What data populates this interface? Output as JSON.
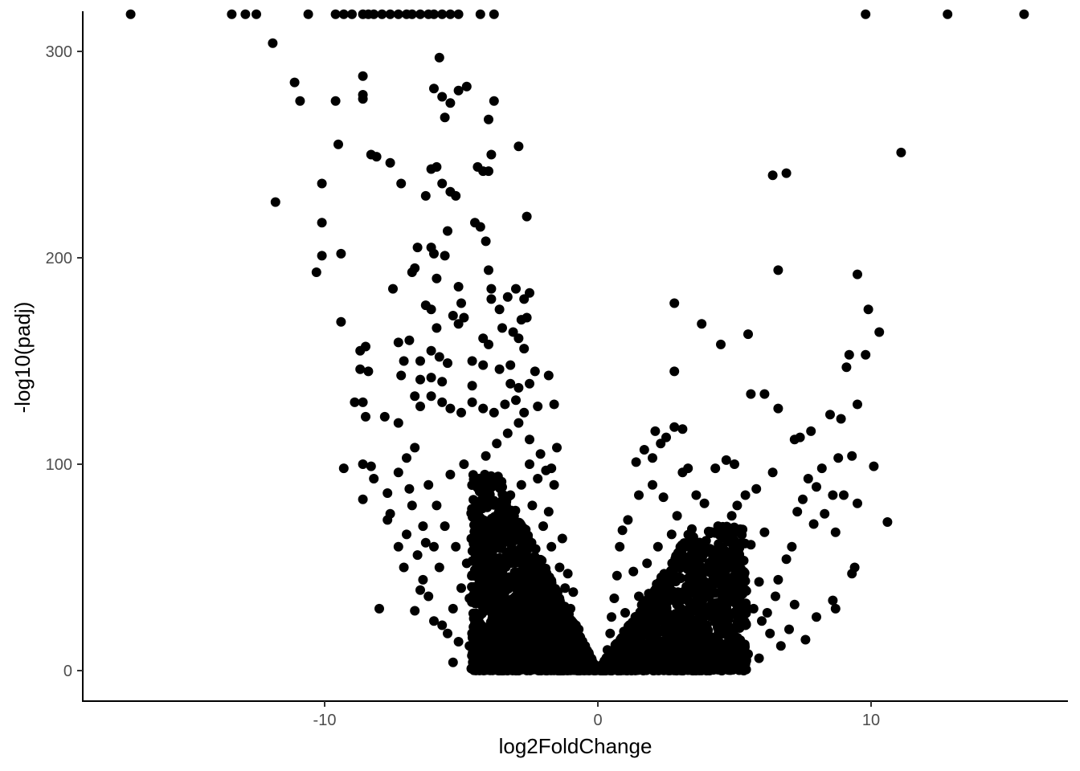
{
  "chart_data": {
    "type": "scatter",
    "title": "",
    "xlabel": "log2FoldChange",
    "ylabel": "-log10(padj)",
    "xlim": [
      -18.5,
      17.5
    ],
    "ylim": [
      -15,
      318
    ],
    "x_ticks": [
      -10,
      0,
      10
    ],
    "x_tick_labels": [
      "-10",
      "0",
      "10"
    ],
    "y_ticks": [
      0,
      100,
      200,
      300
    ],
    "y_tick_labels": [
      "0",
      "100",
      "200",
      "300"
    ],
    "grid": false,
    "legend": "none",
    "point_color": "#000000",
    "points": [
      [
        -17.1,
        318
      ],
      [
        -13.4,
        318
      ],
      [
        -12.9,
        318
      ],
      [
        -12.5,
        318
      ],
      [
        -10.6,
        318
      ],
      [
        -9.6,
        318
      ],
      [
        -9.3,
        318
      ],
      [
        -9.0,
        318
      ],
      [
        -8.6,
        318
      ],
      [
        -8.4,
        318
      ],
      [
        -8.2,
        318
      ],
      [
        -7.9,
        318
      ],
      [
        -7.6,
        318
      ],
      [
        -7.3,
        318
      ],
      [
        -7.0,
        318
      ],
      [
        -6.8,
        318
      ],
      [
        -6.5,
        318
      ],
      [
        -6.2,
        318
      ],
      [
        -6.0,
        318
      ],
      [
        -5.7,
        318
      ],
      [
        -5.4,
        318
      ],
      [
        -5.1,
        318
      ],
      [
        -4.3,
        318
      ],
      [
        -3.8,
        318
      ],
      [
        9.8,
        318
      ],
      [
        12.8,
        318
      ],
      [
        15.6,
        318
      ],
      [
        -11.9,
        304
      ],
      [
        -11.1,
        285
      ],
      [
        -10.9,
        276
      ],
      [
        -9.6,
        276
      ],
      [
        -8.6,
        288
      ],
      [
        -8.6,
        279
      ],
      [
        -8.6,
        277
      ],
      [
        -9.5,
        255
      ],
      [
        -5.8,
        297
      ],
      [
        -6.0,
        282
      ],
      [
        -5.7,
        278
      ],
      [
        -5.4,
        275
      ],
      [
        -5.1,
        281
      ],
      [
        -4.8,
        283
      ],
      [
        -3.8,
        276
      ],
      [
        -4.0,
        267
      ],
      [
        -5.6,
        268
      ],
      [
        -3.9,
        250
      ],
      [
        -2.9,
        254
      ],
      [
        -8.3,
        250
      ],
      [
        -8.1,
        249
      ],
      [
        -7.6,
        246
      ],
      [
        -7.2,
        236
      ],
      [
        -6.1,
        243
      ],
      [
        -5.9,
        244
      ],
      [
        -5.7,
        236
      ],
      [
        -5.4,
        232
      ],
      [
        -5.2,
        230
      ],
      [
        -6.3,
        230
      ],
      [
        -4.4,
        244
      ],
      [
        -4.2,
        242
      ],
      [
        -4.0,
        242
      ],
      [
        -11.8,
        227
      ],
      [
        -10.1,
        236
      ],
      [
        -10.1,
        217
      ],
      [
        -10.1,
        201
      ],
      [
        -10.3,
        193
      ],
      [
        -9.4,
        202
      ],
      [
        -9.4,
        169
      ],
      [
        -2.6,
        220
      ],
      [
        -4.5,
        217
      ],
      [
        -4.3,
        215
      ],
      [
        -5.5,
        213
      ],
      [
        -4.1,
        208
      ],
      [
        -6.6,
        205
      ],
      [
        -6.1,
        205
      ],
      [
        -6.0,
        202
      ],
      [
        -5.6,
        201
      ],
      [
        -6.7,
        195
      ],
      [
        -6.8,
        193
      ],
      [
        -5.9,
        190
      ],
      [
        -4.0,
        194
      ],
      [
        -5.1,
        186
      ],
      [
        -3.9,
        185
      ],
      [
        -3.9,
        180
      ],
      [
        -3.3,
        181
      ],
      [
        -2.5,
        183
      ],
      [
        -2.7,
        180
      ],
      [
        -3.0,
        185
      ],
      [
        -7.5,
        185
      ],
      [
        -6.3,
        177
      ],
      [
        -6.1,
        175
      ],
      [
        -5.0,
        178
      ],
      [
        -5.3,
        172
      ],
      [
        -4.9,
        171
      ],
      [
        -3.6,
        175
      ],
      [
        -2.6,
        171
      ],
      [
        -2.8,
        170
      ],
      [
        -3.5,
        166
      ],
      [
        -3.1,
        164
      ],
      [
        -2.9,
        161
      ],
      [
        -4.2,
        161
      ],
      [
        -4.0,
        158
      ],
      [
        -5.9,
        166
      ],
      [
        -6.9,
        160
      ],
      [
        -7.3,
        159
      ],
      [
        -5.1,
        168
      ],
      [
        -8.5,
        157
      ],
      [
        -8.7,
        155
      ],
      [
        -8.7,
        146
      ],
      [
        -8.4,
        145
      ],
      [
        -7.1,
        150
      ],
      [
        -6.5,
        150
      ],
      [
        -6.1,
        155
      ],
      [
        -5.8,
        152
      ],
      [
        -5.5,
        149
      ],
      [
        -4.6,
        150
      ],
      [
        -4.2,
        148
      ],
      [
        -3.6,
        146
      ],
      [
        -3.2,
        148
      ],
      [
        -2.7,
        156
      ],
      [
        -2.3,
        145
      ],
      [
        -7.2,
        143
      ],
      [
        -6.5,
        141
      ],
      [
        -6.1,
        142
      ],
      [
        -5.7,
        140
      ],
      [
        -4.6,
        138
      ],
      [
        -3.2,
        139
      ],
      [
        -2.9,
        137
      ],
      [
        -2.5,
        139
      ],
      [
        -1.8,
        143
      ],
      [
        -8.9,
        130
      ],
      [
        -8.6,
        130
      ],
      [
        -8.5,
        123
      ],
      [
        -7.8,
        123
      ],
      [
        -7.3,
        120
      ],
      [
        -6.7,
        133
      ],
      [
        -6.5,
        128
      ],
      [
        -6.1,
        133
      ],
      [
        -5.7,
        130
      ],
      [
        -5.4,
        127
      ],
      [
        -5.0,
        125
      ],
      [
        -4.6,
        130
      ],
      [
        -4.2,
        127
      ],
      [
        -3.8,
        125
      ],
      [
        -3.4,
        129
      ],
      [
        -3.0,
        131
      ],
      [
        -2.7,
        125
      ],
      [
        -2.2,
        128
      ],
      [
        -1.6,
        129
      ],
      [
        -1.5,
        108
      ],
      [
        -9.3,
        98
      ],
      [
        -8.6,
        100
      ],
      [
        -8.3,
        99
      ],
      [
        -8.2,
        93
      ],
      [
        -7.7,
        86
      ],
      [
        -7.3,
        96
      ],
      [
        -7.0,
        103
      ],
      [
        -6.7,
        108
      ],
      [
        -8.6,
        83
      ],
      [
        -7.6,
        76
      ],
      [
        -7.7,
        73
      ],
      [
        -7.3,
        60
      ],
      [
        -7.1,
        50
      ],
      [
        -8.0,
        30
      ],
      [
        -6.7,
        29
      ],
      [
        -6.4,
        44
      ],
      [
        -6.5,
        39
      ],
      [
        -6.0,
        24
      ],
      [
        -5.3,
        4
      ],
      [
        -4.5,
        4
      ],
      [
        -3.5,
        11
      ],
      [
        -2.2,
        36
      ],
      [
        -1.8,
        77
      ],
      [
        -2.5,
        100
      ],
      [
        -2.2,
        93
      ],
      [
        -1.9,
        97
      ],
      [
        -1.6,
        90
      ],
      [
        -1.3,
        64
      ],
      [
        -1.1,
        47
      ],
      [
        -0.9,
        38
      ],
      [
        -0.7,
        20
      ],
      [
        -0.5,
        8
      ],
      [
        -0.3,
        2
      ],
      [
        -0.15,
        0.5
      ],
      [
        2.8,
        178
      ],
      [
        3.8,
        168
      ],
      [
        4.5,
        158
      ],
      [
        5.5,
        163
      ],
      [
        2.8,
        145
      ],
      [
        5.6,
        134
      ],
      [
        6.1,
        134
      ],
      [
        6.4,
        240
      ],
      [
        6.9,
        241
      ],
      [
        6.6,
        194
      ],
      [
        11.1,
        251
      ],
      [
        9.5,
        192
      ],
      [
        9.9,
        175
      ],
      [
        10.3,
        164
      ],
      [
        9.8,
        153
      ],
      [
        9.2,
        153
      ],
      [
        9.1,
        147
      ],
      [
        9.5,
        129
      ],
      [
        8.5,
        124
      ],
      [
        8.9,
        122
      ],
      [
        7.8,
        116
      ],
      [
        7.4,
        113
      ],
      [
        7.2,
        112
      ],
      [
        6.6,
        127
      ],
      [
        10.1,
        99
      ],
      [
        10.6,
        72
      ],
      [
        9.3,
        104
      ],
      [
        8.8,
        103
      ],
      [
        9.5,
        81
      ],
      [
        9.4,
        50
      ],
      [
        9.3,
        47
      ],
      [
        9.0,
        85
      ],
      [
        8.6,
        85
      ],
      [
        8.7,
        67
      ],
      [
        8.2,
        98
      ],
      [
        7.7,
        93
      ],
      [
        8.0,
        89
      ],
      [
        8.3,
        76
      ],
      [
        7.9,
        71
      ],
      [
        7.5,
        83
      ],
      [
        7.3,
        77
      ],
      [
        7.1,
        60
      ],
      [
        6.9,
        54
      ],
      [
        6.6,
        44
      ],
      [
        6.5,
        36
      ],
      [
        6.2,
        28
      ],
      [
        6.0,
        24
      ],
      [
        7.0,
        20
      ],
      [
        7.2,
        32
      ],
      [
        7.6,
        15
      ],
      [
        8.0,
        26
      ],
      [
        8.6,
        34
      ],
      [
        8.7,
        30
      ],
      [
        6.4,
        96
      ],
      [
        5.8,
        88
      ],
      [
        5.4,
        85
      ],
      [
        5.0,
        100
      ],
      [
        4.7,
        102
      ],
      [
        4.3,
        98
      ],
      [
        5.1,
        80
      ],
      [
        4.9,
        75
      ],
      [
        5.6,
        61
      ],
      [
        5.2,
        48
      ],
      [
        4.8,
        40
      ],
      [
        4.4,
        33
      ],
      [
        5.9,
        43
      ],
      [
        6.1,
        67
      ],
      [
        3.3,
        98
      ],
      [
        3.1,
        96
      ],
      [
        2.8,
        118
      ],
      [
        3.1,
        117
      ],
      [
        2.5,
        113
      ],
      [
        2.1,
        116
      ],
      [
        2.3,
        110
      ],
      [
        1.7,
        107
      ],
      [
        1.4,
        101
      ],
      [
        2.0,
        103
      ],
      [
        3.6,
        85
      ],
      [
        3.9,
        81
      ],
      [
        4.4,
        70
      ],
      [
        3.4,
        66
      ],
      [
        2.9,
        75
      ],
      [
        2.4,
        84
      ],
      [
        2.0,
        90
      ],
      [
        1.5,
        85
      ],
      [
        1.1,
        73
      ],
      [
        0.9,
        68
      ],
      [
        0.8,
        60
      ],
      [
        0.7,
        46
      ],
      [
        0.6,
        35
      ],
      [
        0.5,
        26
      ],
      [
        0.45,
        18
      ],
      [
        0.35,
        10
      ],
      [
        0.25,
        4
      ],
      [
        0.15,
        1
      ],
      [
        1.3,
        48
      ],
      [
        1.8,
        52
      ],
      [
        2.6,
        45
      ],
      [
        3.5,
        38
      ],
      [
        4.0,
        30
      ],
      [
        4.6,
        23
      ],
      [
        5.0,
        15
      ],
      [
        5.5,
        8
      ],
      [
        5.9,
        6
      ],
      [
        4.2,
        8
      ],
      [
        3.0,
        10
      ],
      [
        2.2,
        12
      ],
      [
        1.6,
        14
      ],
      [
        1.2,
        20
      ],
      [
        1.0,
        28
      ],
      [
        1.5,
        36
      ],
      [
        2.2,
        60
      ],
      [
        2.7,
        66
      ],
      [
        3.2,
        55
      ],
      [
        3.8,
        48
      ],
      [
        4.3,
        52
      ],
      [
        4.9,
        58
      ],
      [
        5.3,
        40
      ],
      [
        5.7,
        30
      ],
      [
        6.3,
        18
      ],
      [
        6.7,
        12
      ],
      [
        -1.0,
        4
      ],
      [
        -1.4,
        6
      ],
      [
        -1.8,
        9
      ],
      [
        -2.3,
        10
      ],
      [
        -2.8,
        9
      ],
      [
        -3.3,
        8
      ],
      [
        -3.8,
        7
      ],
      [
        -4.2,
        10
      ],
      [
        -4.7,
        12
      ],
      [
        -5.1,
        14
      ],
      [
        -5.5,
        18
      ],
      [
        -5.3,
        30
      ],
      [
        -5.0,
        40
      ],
      [
        -4.8,
        52
      ],
      [
        -4.4,
        60
      ],
      [
        -4.0,
        70
      ],
      [
        -3.6,
        78
      ],
      [
        -3.2,
        85
      ],
      [
        -2.8,
        90
      ],
      [
        -2.4,
        80
      ],
      [
        -2.0,
        70
      ],
      [
        -1.7,
        60
      ],
      [
        -1.4,
        50
      ],
      [
        -1.2,
        40
      ],
      [
        -1.0,
        30
      ],
      [
        -0.8,
        22
      ],
      [
        -0.6,
        14
      ],
      [
        -1.6,
        20
      ],
      [
        -2.0,
        26
      ],
      [
        -2.5,
        32
      ],
      [
        -3.0,
        40
      ],
      [
        -3.5,
        48
      ],
      [
        -3.9,
        55
      ],
      [
        -4.3,
        44
      ],
      [
        -4.7,
        35
      ],
      [
        -5.2,
        60
      ],
      [
        -5.6,
        70
      ],
      [
        -5.9,
        80
      ],
      [
        -6.2,
        90
      ],
      [
        -5.4,
        95
      ],
      [
        -4.9,
        100
      ],
      [
        -4.5,
        90
      ],
      [
        -4.1,
        104
      ],
      [
        -3.7,
        110
      ],
      [
        -3.3,
        115
      ],
      [
        -2.9,
        120
      ],
      [
        -2.5,
        112
      ],
      [
        -2.1,
        105
      ],
      [
        -1.7,
        98
      ],
      [
        -6.8,
        80
      ],
      [
        -6.4,
        70
      ],
      [
        -6.0,
        60
      ],
      [
        -5.8,
        50
      ],
      [
        -6.3,
        62
      ],
      [
        -6.9,
        88
      ],
      [
        -7.0,
        66
      ],
      [
        -6.6,
        56
      ],
      [
        -6.2,
        36
      ],
      [
        -5.7,
        22
      ]
    ]
  }
}
